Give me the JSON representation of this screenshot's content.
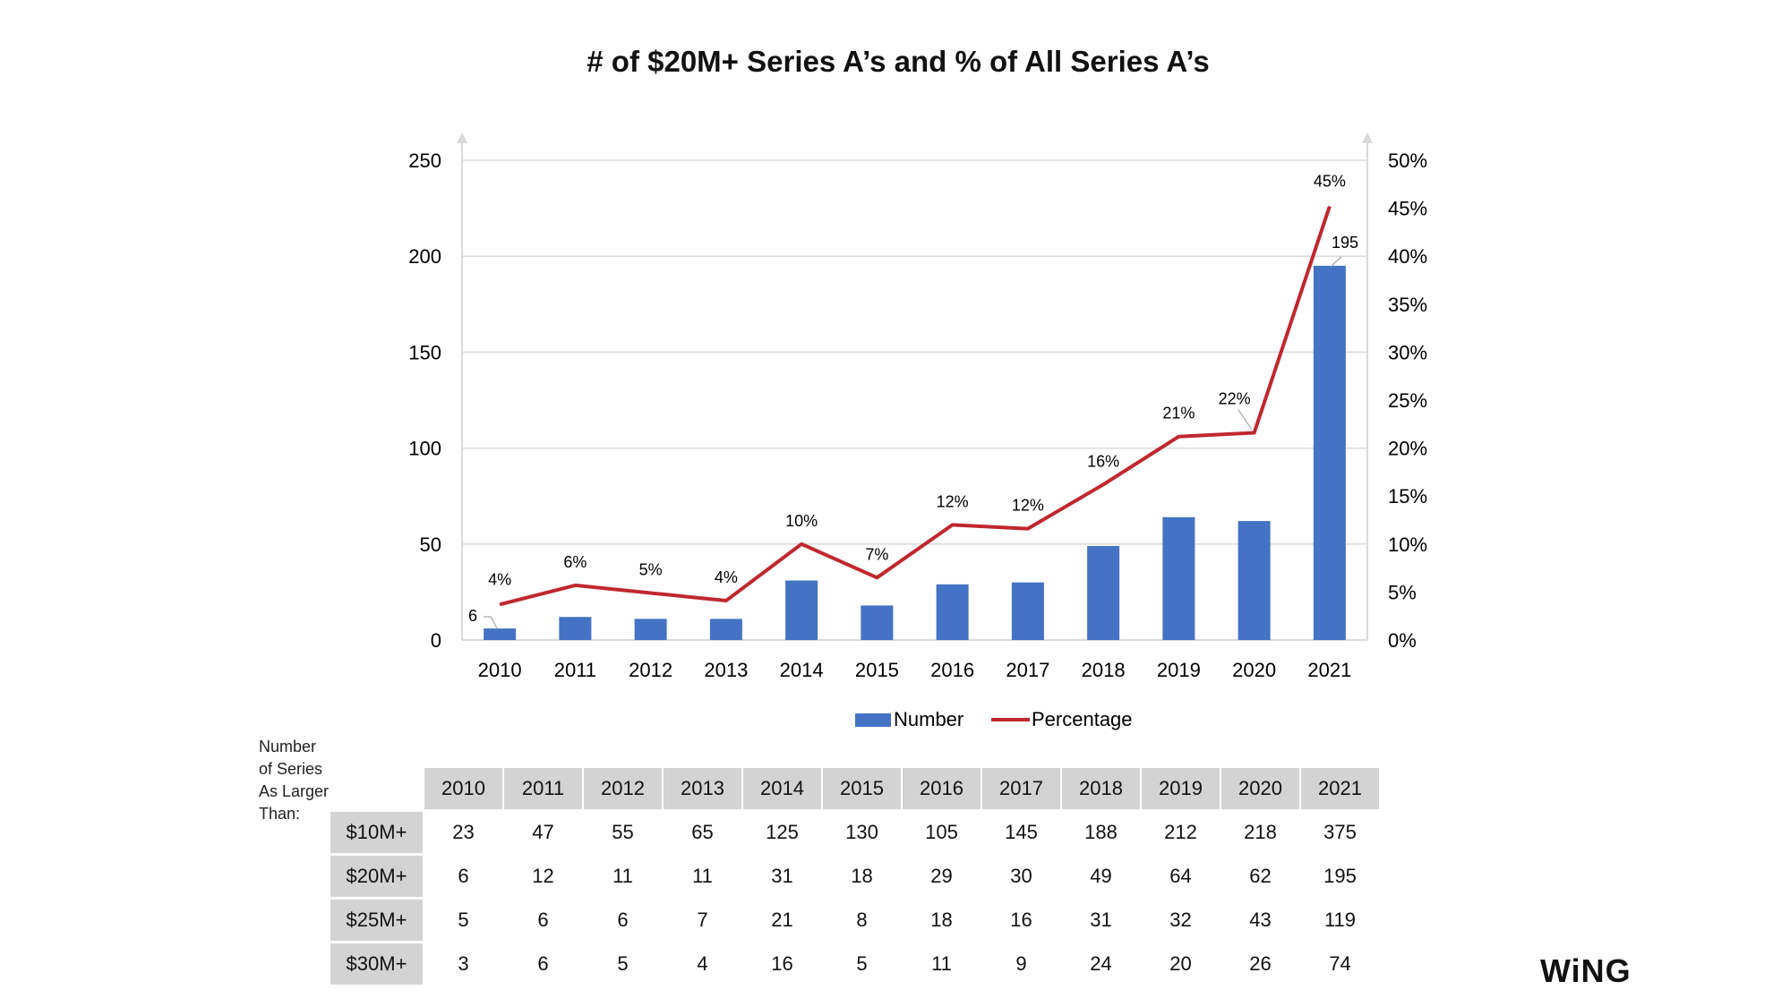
{
  "chart_data": {
    "type": "bar+line",
    "title": "# of $20M+ Series A’s and % of All Series A’s",
    "categories": [
      "2010",
      "2011",
      "2012",
      "2013",
      "2014",
      "2015",
      "2016",
      "2017",
      "2018",
      "2019",
      "2020",
      "2021"
    ],
    "series": [
      {
        "name": "Number",
        "type": "bar",
        "axis": "left",
        "color": "#4472c4",
        "values": [
          6,
          12,
          11,
          11,
          31,
          18,
          29,
          30,
          49,
          64,
          62,
          195
        ],
        "data_labels": {
          "2010": "6",
          "2021": "195"
        }
      },
      {
        "name": "Percentage",
        "type": "line",
        "axis": "right",
        "color": "#c0272d",
        "values": [
          3.7,
          5.7,
          4.9,
          4.1,
          10,
          6.5,
          12,
          11.6,
          16.2,
          21.2,
          21.6,
          45.2
        ],
        "data_labels": [
          "4%",
          "6%",
          "5%",
          "4%",
          "10%",
          "7%",
          "12%",
          "12%",
          "16%",
          "21%",
          "22%",
          "45%"
        ]
      }
    ],
    "y_left": {
      "range": [
        0,
        250
      ],
      "ticks": [
        "0",
        "50",
        "100",
        "150",
        "200",
        "250"
      ]
    },
    "y_right": {
      "range": [
        0,
        50
      ],
      "ticks": [
        "0%",
        "5%",
        "10%",
        "15%",
        "20%",
        "25%",
        "30%",
        "35%",
        "40%",
        "45%",
        "50%"
      ]
    },
    "grid": true,
    "legend": "bottom"
  },
  "table": {
    "side_label": [
      "Number",
      "of Series",
      "As Larger",
      "Than:"
    ],
    "years": [
      "2010",
      "2011",
      "2012",
      "2013",
      "2014",
      "2015",
      "2016",
      "2017",
      "2018",
      "2019",
      "2020",
      "2021"
    ],
    "rows": [
      {
        "label": "$10M+",
        "values": [
          "23",
          "47",
          "55",
          "65",
          "125",
          "130",
          "105",
          "145",
          "188",
          "212",
          "218",
          "375"
        ]
      },
      {
        "label": "$20M+",
        "values": [
          "6",
          "12",
          "11",
          "11",
          "31",
          "18",
          "29",
          "30",
          "49",
          "64",
          "62",
          "195"
        ]
      },
      {
        "label": "$25M+",
        "values": [
          "5",
          "6",
          "6",
          "7",
          "21",
          "8",
          "18",
          "16",
          "31",
          "32",
          "43",
          "119"
        ]
      },
      {
        "label": "$30M+",
        "values": [
          "3",
          "6",
          "5",
          "4",
          "16",
          "5",
          "11",
          "9",
          "24",
          "20",
          "26",
          "74"
        ]
      }
    ]
  },
  "logo": "WiNG"
}
